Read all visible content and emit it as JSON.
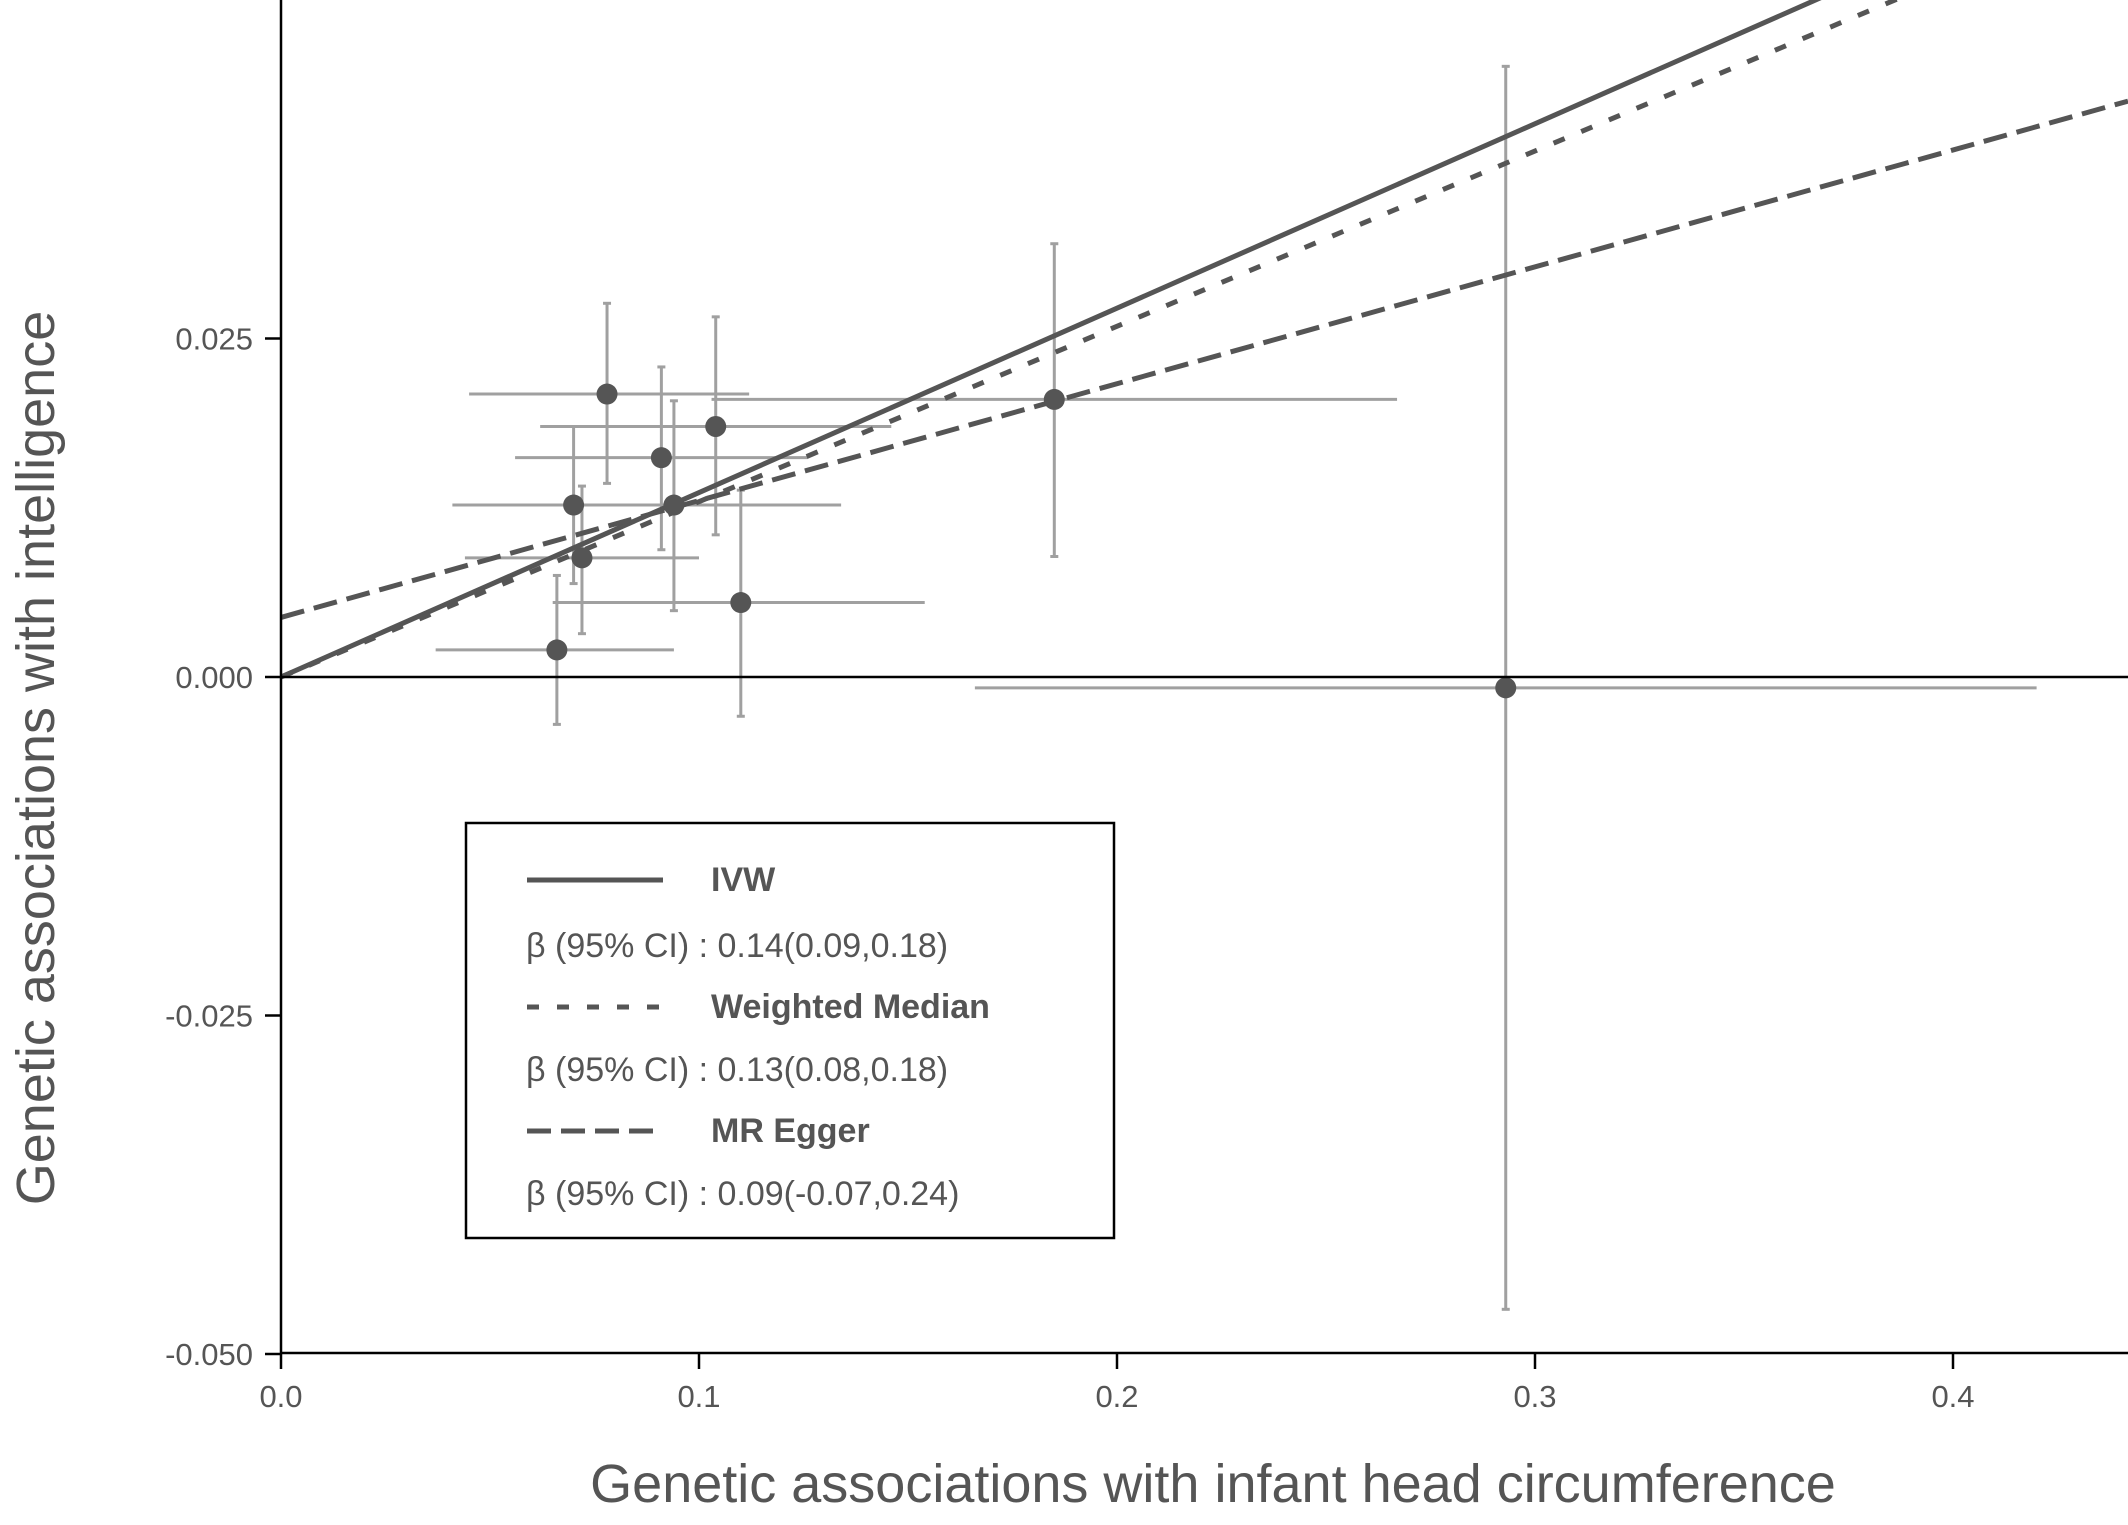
{
  "chart_data": {
    "type": "scatter",
    "xlabel": "Genetic associations with infant head circumference",
    "ylabel": "Genetic associations with intelligence",
    "xlim": [
      0,
      0.44
    ],
    "ylim": [
      -0.05,
      0.0495
    ],
    "x_ticks": [
      "0.0",
      "0.1",
      "0.2",
      "0.3",
      "0.4"
    ],
    "y_ticks": [
      "0.025",
      "0.000",
      "-0.025",
      "-0.050"
    ],
    "colors": {
      "point": "#555555",
      "error_bar": "#a0a0a0",
      "line": "#555555",
      "axis": "#000000"
    },
    "points": [
      {
        "x": 0.078,
        "y": 0.0209,
        "x_lo": 0.045,
        "x_hi": 0.112,
        "y_lo": 0.0143,
        "y_hi": 0.0276
      },
      {
        "x": 0.091,
        "y": 0.0162,
        "x_lo": 0.056,
        "x_hi": 0.126,
        "y_lo": 0.0094,
        "y_hi": 0.0229
      },
      {
        "x": 0.104,
        "y": 0.0185,
        "x_lo": 0.062,
        "x_hi": 0.146,
        "y_lo": 0.0105,
        "y_hi": 0.0266
      },
      {
        "x": 0.07,
        "y": 0.0127,
        "x_lo": 0.041,
        "x_hi": 0.099,
        "y_lo": 0.0069,
        "y_hi": 0.0185
      },
      {
        "x": 0.094,
        "y": 0.0127,
        "x_lo": 0.042,
        "x_hi": 0.134,
        "y_lo": 0.0049,
        "y_hi": 0.0204
      },
      {
        "x": 0.072,
        "y": 0.0088,
        "x_lo": 0.044,
        "x_hi": 0.1,
        "y_lo": 0.0032,
        "y_hi": 0.0141
      },
      {
        "x": 0.11,
        "y": 0.0055,
        "x_lo": 0.065,
        "x_hi": 0.154,
        "y_lo": -0.0029,
        "y_hi": 0.0138
      },
      {
        "x": 0.066,
        "y": 0.002,
        "x_lo": 0.037,
        "x_hi": 0.094,
        "y_lo": -0.0035,
        "y_hi": 0.0075
      },
      {
        "x": 0.185,
        "y": 0.0205,
        "x_lo": 0.103,
        "x_hi": 0.267,
        "y_lo": 0.0089,
        "y_hi": 0.032
      },
      {
        "x": 0.293,
        "y": -0.0008,
        "x_lo": 0.166,
        "x_hi": 0.42,
        "y_lo": -0.0467,
        "y_hi": 0.0451
      }
    ],
    "series": [
      {
        "name": "IVW",
        "stat": "β (95% CI) : 0.14(0.09,0.18)",
        "style": "solid",
        "slope": 0.1362,
        "intercept": 0
      },
      {
        "name": "Weighted Median",
        "stat": "β (95% CI) : 0.13(0.08,0.18)",
        "style": "dotted",
        "slope": 0.1295,
        "intercept": 0
      },
      {
        "name": "MR Egger",
        "stat": "β (95% CI) : 0.09(-0.07,0.24)",
        "style": "dashed",
        "slope": 0.0863,
        "intercept": 0.0044
      }
    ],
    "legend_position": "bottom-left"
  }
}
